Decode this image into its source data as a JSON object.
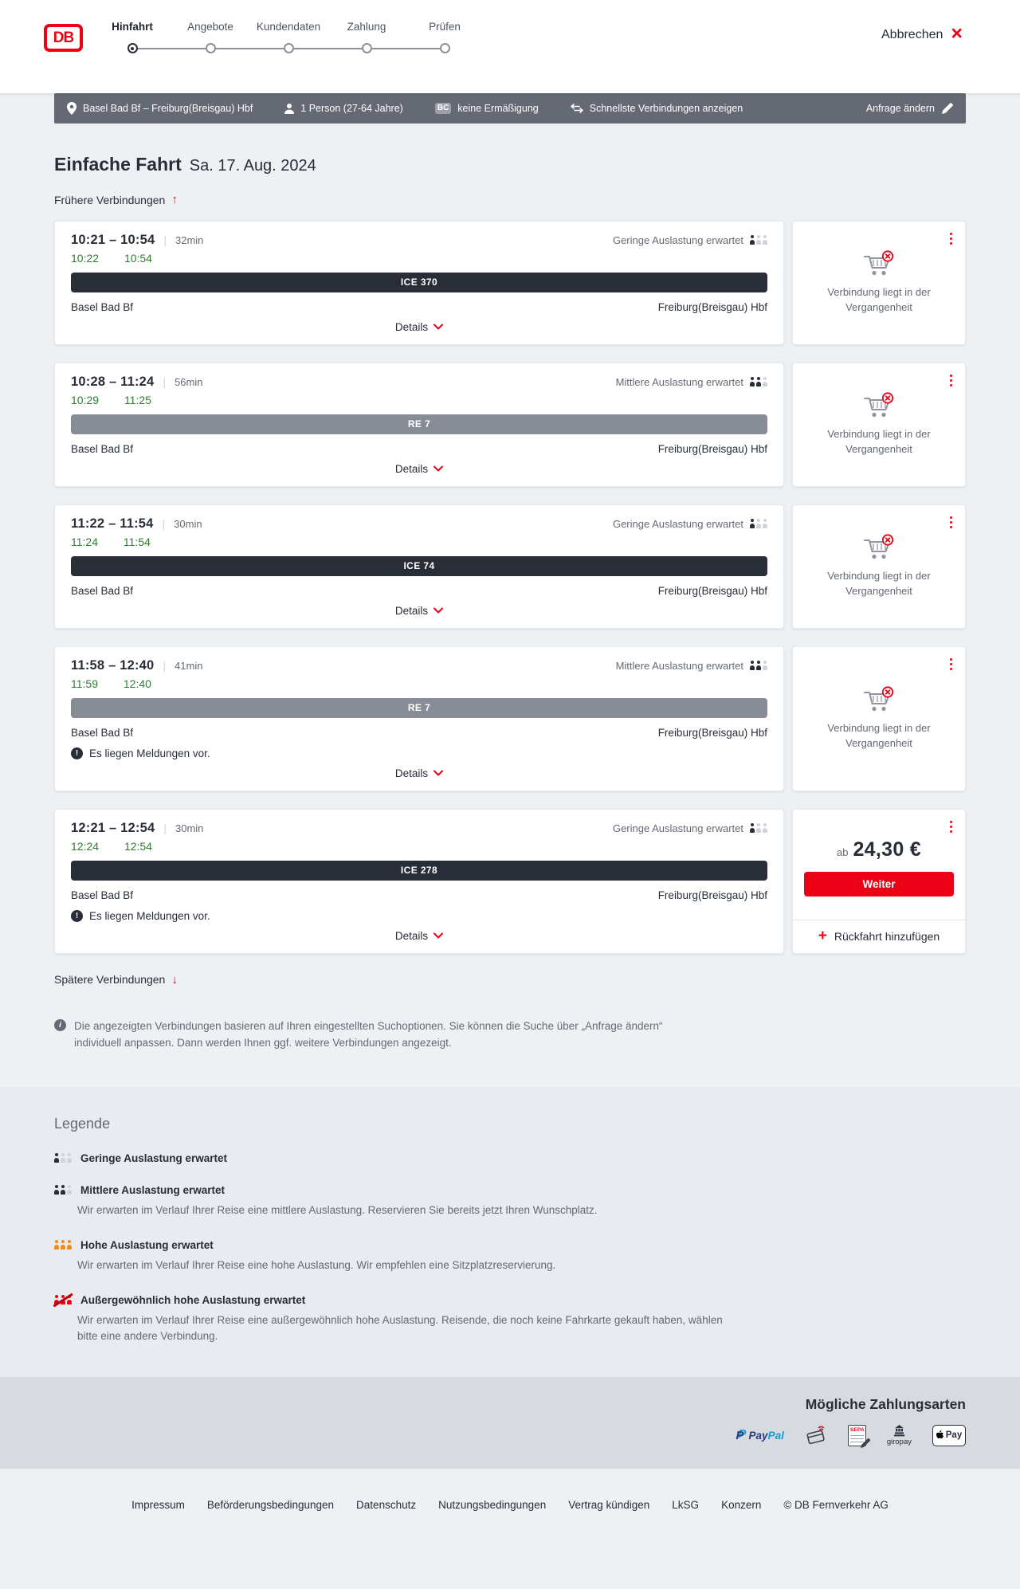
{
  "header": {
    "logo_text": "DB",
    "steps": [
      {
        "label": "Hinfahrt",
        "state": "active"
      },
      {
        "label": "Angebote",
        "state": "upcoming"
      },
      {
        "label": "Kundendaten",
        "state": "upcoming"
      },
      {
        "label": "Zahlung",
        "state": "upcoming"
      },
      {
        "label": "Prüfen",
        "state": "upcoming"
      }
    ],
    "cancel_label": "Abbrechen",
    "close_icon": "×"
  },
  "summary_bar": {
    "route": "Basel Bad Bf – Freiburg(Breisgau) Hbf",
    "passengers": "1 Person (27-64 Jahre)",
    "bahncard_badge": "BC",
    "discount": "keine Ermäßigung",
    "fastest_toggle": "Schnellste Verbindungen anzeigen",
    "edit_request": "Anfrage ändern"
  },
  "trip": {
    "title": "Einfache Fahrt",
    "date": "Sa. 17. Aug. 2024",
    "earlier_link": "Frühere Verbindungen",
    "later_link": "Spätere Verbindungen",
    "details_label": "Details",
    "past_note": "Verbindung liegt in der Vergangenheit",
    "connections": [
      {
        "range": "10:21 – 10:54",
        "duration": "32min",
        "occupancy": "low",
        "occupancy_label": "Geringe Auslastung erwartet",
        "rt_depart": "10:22",
        "rt_arrive": "10:54",
        "train": "ICE 370",
        "train_type": "ice",
        "from": "Basel Bad Bf",
        "to": "Freiburg(Breisgau) Hbf",
        "messages": "",
        "past": true
      },
      {
        "range": "10:28 – 11:24",
        "duration": "56min",
        "occupancy": "medium",
        "occupancy_label": "Mittlere Auslastung erwartet",
        "rt_depart": "10:29",
        "rt_arrive": "11:25",
        "train": "RE 7",
        "train_type": "re",
        "from": "Basel Bad Bf",
        "to": "Freiburg(Breisgau) Hbf",
        "messages": "",
        "past": true
      },
      {
        "range": "11:22 – 11:54",
        "duration": "30min",
        "occupancy": "low",
        "occupancy_label": "Geringe Auslastung erwartet",
        "rt_depart": "11:24",
        "rt_arrive": "11:54",
        "train": "ICE 74",
        "train_type": "ice",
        "from": "Basel Bad Bf",
        "to": "Freiburg(Breisgau) Hbf",
        "messages": "",
        "past": true
      },
      {
        "range": "11:58 – 12:40",
        "duration": "41min",
        "occupancy": "medium",
        "occupancy_label": "Mittlere Auslastung erwartet",
        "rt_depart": "11:59",
        "rt_arrive": "12:40",
        "train": "RE 7",
        "train_type": "re",
        "from": "Basel Bad Bf",
        "to": "Freiburg(Breisgau) Hbf",
        "messages": "Es liegen Meldungen vor.",
        "past": true
      },
      {
        "range": "12:21 – 12:54",
        "duration": "30min",
        "occupancy": "low",
        "occupancy_label": "Geringe Auslastung erwartet",
        "rt_depart": "12:24",
        "rt_arrive": "12:54",
        "train": "ICE 278",
        "train_type": "ice",
        "from": "Basel Bad Bf",
        "to": "Freiburg(Breisgau) Hbf",
        "messages": "Es liegen Meldungen vor.",
        "past": false,
        "price_prefix": "ab",
        "price": "24,30 €",
        "cta": "Weiter",
        "add_return": "Rückfahrt hinzufügen"
      }
    ]
  },
  "info_note": {
    "text": "Die angezeigten Verbindungen basieren auf Ihren eingestellten Suchoptionen. Sie können die Suche über „Anfrage ändern“ individuell anpassen. Dann werden Ihnen ggf. weitere Verbindungen angezeigt."
  },
  "legend": {
    "title": "Legende",
    "items": [
      {
        "level": "low",
        "label": "Geringe Auslastung erwartet",
        "desc": ""
      },
      {
        "level": "medium",
        "label": "Mittlere Auslastung erwartet",
        "desc": "Wir erwarten im Verlauf Ihrer Reise eine mittlere Auslastung. Reservieren Sie bereits jetzt Ihren Wunschplatz."
      },
      {
        "level": "high",
        "label": "Hohe Auslastung erwartet",
        "desc": "Wir erwarten im Verlauf Ihrer Reise eine hohe Auslastung. Wir empfehlen eine Sitzplatzreservierung."
      },
      {
        "level": "exceptional",
        "label": "Außergewöhnlich hohe Auslastung erwartet",
        "desc": "Wir erwarten im Verlauf Ihrer Reise eine außergewöhnlich hohe Auslastung. Reisende, die noch keine Fahrkarte gekauft haben, wählen bitte eine andere Verbindung."
      }
    ]
  },
  "payments": {
    "title": "Mögliche Zahlungsarten",
    "labels": {
      "paypal_monogram": "P",
      "paypal_pay": "Pay",
      "paypal_pal": "Pal",
      "sepa": "SEPA",
      "giropay": "giropay",
      "applepay": "Pay"
    }
  },
  "footer": {
    "links": [
      {
        "label": "Impressum"
      },
      {
        "label": "Beförderungsbedingungen"
      },
      {
        "label": "Datenschutz"
      },
      {
        "label": "Nutzungsbedingungen"
      },
      {
        "label": "Vertrag kündigen"
      },
      {
        "label": "LkSG"
      },
      {
        "label": "Konzern"
      }
    ],
    "copyright": "© DB Fernverkehr AG"
  }
}
